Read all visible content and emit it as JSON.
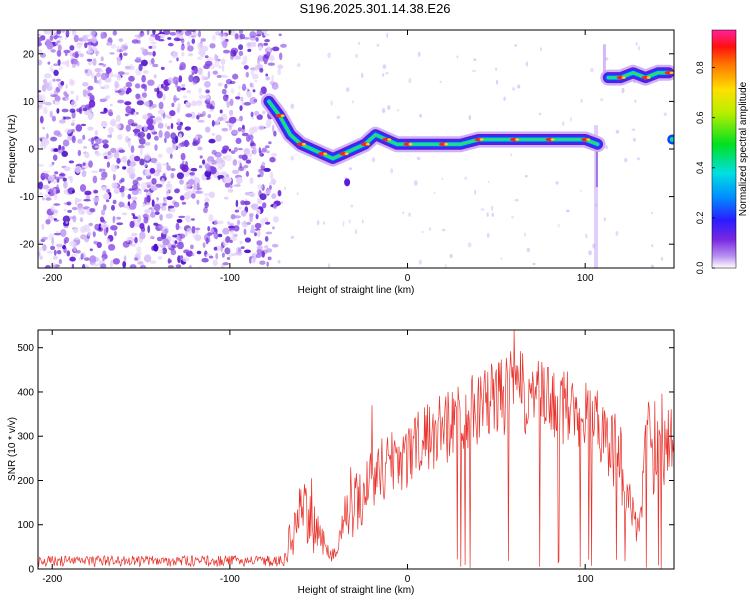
{
  "title": "S196.2025.301.14.38.E26",
  "chart_data": [
    {
      "type": "heatmap",
      "name": "spectrogram",
      "xlabel": "Height of straight line (km)",
      "ylabel": "Frequency (Hz)",
      "xlim": [
        -208,
        150
      ],
      "ylim": [
        -25,
        25
      ],
      "xticks": [
        -200,
        -100,
        0,
        100
      ],
      "xtick_labels": [
        "-200",
        "-100",
        "0",
        "100"
      ],
      "yticks": [
        20,
        10,
        0,
        -10,
        -20
      ],
      "ytick_labels": [
        "20",
        "10",
        "0",
        "-10",
        "-20"
      ],
      "colorbar": {
        "label": "Normalized spectral amplitude",
        "range": [
          0,
          0.95
        ],
        "ticks": [
          0.0,
          0.2,
          0.4,
          0.6,
          0.8
        ],
        "tick_labels": [
          "0.0",
          "0.2",
          "0.4",
          "0.6",
          "0.8"
        ]
      },
      "noise_region": {
        "x": [
          -208,
          -74
        ],
        "y": [
          -25,
          25
        ],
        "amplitude": "low"
      },
      "trace": [
        {
          "x": -78,
          "y": 10
        },
        {
          "x": -72,
          "y": 7
        },
        {
          "x": -66,
          "y": 3
        },
        {
          "x": -60,
          "y": 1
        },
        {
          "x": -54,
          "y": 0
        },
        {
          "x": -48,
          "y": -1
        },
        {
          "x": -42,
          "y": -2
        },
        {
          "x": -36,
          "y": -1
        },
        {
          "x": -30,
          "y": 0
        },
        {
          "x": -24,
          "y": 1
        },
        {
          "x": -18,
          "y": 3
        },
        {
          "x": -12,
          "y": 2
        },
        {
          "x": -6,
          "y": 1
        },
        {
          "x": 0,
          "y": 1
        },
        {
          "x": 10,
          "y": 1
        },
        {
          "x": 20,
          "y": 1
        },
        {
          "x": 30,
          "y": 1
        },
        {
          "x": 40,
          "y": 2
        },
        {
          "x": 50,
          "y": 2
        },
        {
          "x": 60,
          "y": 2
        },
        {
          "x": 70,
          "y": 2
        },
        {
          "x": 80,
          "y": 2
        },
        {
          "x": 90,
          "y": 2
        },
        {
          "x": 100,
          "y": 2
        },
        {
          "x": 107,
          "y": 1
        }
      ],
      "upper_trace": [
        {
          "x": 113,
          "y": 15
        },
        {
          "x": 120,
          "y": 15
        },
        {
          "x": 127,
          "y": 16
        },
        {
          "x": 134,
          "y": 15
        },
        {
          "x": 141,
          "y": 16
        },
        {
          "x": 147,
          "y": 16
        }
      ]
    },
    {
      "type": "line",
      "name": "snr",
      "xlabel": "Height of straight line (km)",
      "ylabel": "SNR (10 * v/v)",
      "xlim": [
        -208,
        150
      ],
      "ylim": [
        0,
        540
      ],
      "xticks": [
        -200,
        -100,
        0,
        100
      ],
      "xtick_labels": [
        "-200",
        "-100",
        "0",
        "100"
      ],
      "yticks": [
        0,
        100,
        200,
        300,
        400,
        500
      ],
      "ytick_labels": [
        "0",
        "100",
        "200",
        "300",
        "400",
        "500"
      ],
      "series": [
        {
          "name": "SNR",
          "color": "#e8322b",
          "x_start": -208,
          "x_step": 0.4,
          "envelope": [
            {
              "x": -208,
              "low": 5,
              "high": 30
            },
            {
              "x": -70,
              "low": 5,
              "high": 30
            },
            {
              "x": -65,
              "low": 20,
              "high": 130
            },
            {
              "x": -60,
              "low": 40,
              "high": 195
            },
            {
              "x": -55,
              "low": 40,
              "high": 190
            },
            {
              "x": -50,
              "low": 30,
              "high": 120
            },
            {
              "x": -45,
              "low": 20,
              "high": 60
            },
            {
              "x": -40,
              "low": 10,
              "high": 50
            },
            {
              "x": -35,
              "low": 60,
              "high": 180
            },
            {
              "x": -30,
              "low": 70,
              "high": 210
            },
            {
              "x": -25,
              "low": 90,
              "high": 250
            },
            {
              "x": -20,
              "low": 110,
              "high": 280
            },
            {
              "x": -15,
              "low": 130,
              "high": 300
            },
            {
              "x": -10,
              "low": 150,
              "high": 320
            },
            {
              "x": 0,
              "low": 170,
              "high": 340
            },
            {
              "x": 10,
              "low": 200,
              "high": 370
            },
            {
              "x": 20,
              "low": 230,
              "high": 400
            },
            {
              "x": 30,
              "low": 260,
              "high": 430
            },
            {
              "x": 40,
              "low": 280,
              "high": 450
            },
            {
              "x": 50,
              "low": 290,
              "high": 470
            },
            {
              "x": 60,
              "low": 300,
              "high": 500
            },
            {
              "x": 70,
              "low": 290,
              "high": 480
            },
            {
              "x": 80,
              "low": 280,
              "high": 460
            },
            {
              "x": 90,
              "low": 270,
              "high": 450
            },
            {
              "x": 100,
              "low": 260,
              "high": 430
            },
            {
              "x": 110,
              "low": 230,
              "high": 400
            },
            {
              "x": 120,
              "low": 150,
              "high": 330
            },
            {
              "x": 125,
              "low": 100,
              "high": 200
            },
            {
              "x": 130,
              "low": 40,
              "high": 120
            },
            {
              "x": 135,
              "low": 150,
              "high": 380
            },
            {
              "x": 140,
              "low": 170,
              "high": 420
            },
            {
              "x": 150,
              "low": 160,
              "high": 400
            }
          ],
          "peaks": [
            {
              "x": 60,
              "y": 540
            },
            {
              "x": -20,
              "y": 370
            },
            {
              "x": -32,
              "y": 230
            },
            {
              "x": -54,
              "y": 205
            }
          ]
        }
      ]
    }
  ]
}
